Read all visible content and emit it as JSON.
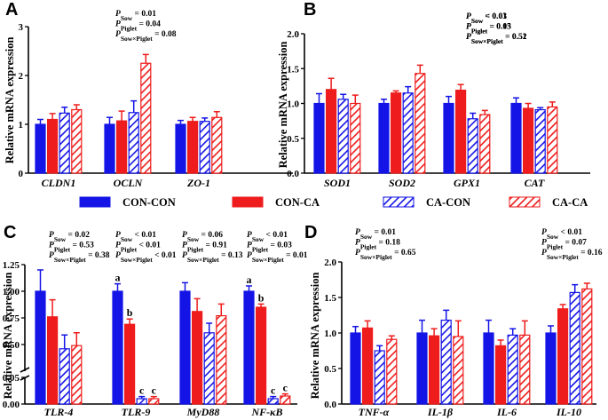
{
  "colors": {
    "con_con": "#1414e6",
    "con_ca": "#ee1c1c",
    "ca_con": "#1414e6",
    "ca_ca": "#ee1c1c"
  },
  "legend": {
    "items": [
      {
        "label": "CON-CON",
        "style": "solid",
        "color": "#1414e6"
      },
      {
        "label": "CON-CA",
        "style": "solid",
        "color": "#ee1c1c"
      },
      {
        "label": "CA-CON",
        "style": "hatch",
        "color": "#1414e6"
      },
      {
        "label": "CA-CA",
        "style": "hatch",
        "color": "#ee1c1c"
      }
    ]
  },
  "chart_data": [
    {
      "panel": "A",
      "type": "bar",
      "ylabel": "Relative mRNA expression",
      "ylim": [
        0,
        3
      ],
      "yticks": [
        "0",
        "1",
        "2",
        "3"
      ],
      "ytick_values": [
        0,
        1,
        2,
        3
      ],
      "categories": [
        "CLDN1",
        "OCLN",
        "ZO-1"
      ],
      "series": [
        {
          "name": "CON-CON",
          "values": [
            1.0,
            1.0,
            1.0
          ],
          "errors": [
            0.1,
            0.14,
            0.08
          ]
        },
        {
          "name": "CON-CA",
          "values": [
            1.1,
            1.07,
            1.06
          ],
          "errors": [
            0.12,
            0.2,
            0.08
          ]
        },
        {
          "name": "CA-CON",
          "values": [
            1.23,
            1.24,
            1.06
          ],
          "errors": [
            0.12,
            0.24,
            0.07
          ]
        },
        {
          "name": "CA-CA",
          "values": [
            1.3,
            2.25,
            1.14
          ],
          "errors": [
            0.1,
            0.18,
            0.12
          ]
        }
      ],
      "stats": [
        {
          "prefix": "P",
          "sub": "Sow",
          "text": " = 0.01",
          "cat": 1
        },
        {
          "prefix": "P",
          "sub": "Piglet",
          "text": " = 0.04",
          "cat": 1
        },
        {
          "prefix": "P",
          "sub": "Sow×Piglet",
          "text": " = 0.08",
          "cat": 1
        }
      ]
    },
    {
      "panel": "B",
      "type": "bar",
      "ylabel": "Relative mRNA expression",
      "ylim": [
        0,
        2
      ],
      "yticks": [
        "0.0",
        "0.5",
        "1.0",
        "1.5",
        "2.0"
      ],
      "ytick_values": [
        0,
        0.5,
        1,
        1.5,
        2
      ],
      "categories": [
        "SOD1",
        "SOD2",
        "GPX1",
        "CAT"
      ],
      "series": [
        {
          "name": "CON-CON",
          "values": [
            1.0,
            1.0,
            1.0,
            1.0
          ],
          "errors": [
            0.14,
            0.06,
            0.1,
            0.08
          ]
        },
        {
          "name": "CON-CA",
          "values": [
            1.2,
            1.15,
            1.19,
            0.93
          ],
          "errors": [
            0.16,
            0.03,
            0.08,
            0.07
          ]
        },
        {
          "name": "CA-CON",
          "values": [
            1.06,
            1.15,
            0.78,
            0.91
          ],
          "errors": [
            0.07,
            0.09,
            0.08,
            0.03
          ]
        },
        {
          "name": "CA-CA",
          "values": [
            1.0,
            1.43,
            0.84,
            0.95
          ],
          "errors": [
            0.12,
            0.12,
            0.06,
            0.07
          ]
        }
      ],
      "stats": [
        {
          "prefix": "P",
          "sub": "Sow",
          "text": " = 0.03",
          "cat": 1
        },
        {
          "prefix": "P",
          "sub": "Piglet",
          "text": " = 0.03",
          "cat": 1
        },
        {
          "prefix": "P",
          "sub": "Sow×Piglet",
          "text": " = 0.51",
          "cat": 1
        },
        {
          "prefix": "P",
          "sub": "Sow",
          "text": " < 0.01",
          "cat": 2
        },
        {
          "prefix": "P",
          "sub": "Piglet",
          "text": " = 0.15",
          "cat": 2
        },
        {
          "prefix": "P",
          "sub": "Sow×Piglet",
          "text": " = 0.52",
          "cat": 2
        }
      ]
    },
    {
      "panel": "C",
      "type": "bar",
      "ylabel": "Relative mRNA expression",
      "broken_axis": true,
      "ylim": [
        0,
        1.25
      ],
      "yticks": [
        "1.25",
        "1.00",
        "0.75",
        "0.50",
        "0.05",
        "0.00"
      ],
      "ytick_values": [
        1.25,
        1.0,
        0.75,
        0.5,
        0.05,
        0
      ],
      "categories": [
        "TLR-4",
        "TLR-9",
        "MyD88",
        "NF-κB"
      ],
      "series": [
        {
          "name": "CON-CON",
          "values": [
            1.0,
            1.0,
            1.0,
            1.0
          ],
          "errors": [
            0.2,
            0.07,
            0.08,
            0.05
          ]
        },
        {
          "name": "CON-CA",
          "values": [
            0.76,
            0.69,
            0.81,
            0.85
          ],
          "errors": [
            0.16,
            0.05,
            0.12,
            0.03
          ]
        },
        {
          "name": "CA-CON",
          "values": [
            0.46,
            0.01,
            0.61,
            0.01
          ],
          "errors": [
            0.13,
            0.004,
            0.09,
            0.004
          ]
        },
        {
          "name": "CA-CA",
          "values": [
            0.49,
            0.01,
            0.77,
            0.015
          ],
          "errors": [
            0.12,
            0.004,
            0.11,
            0.004
          ]
        }
      ],
      "letters": [
        {
          "cat": 1,
          "series": 0,
          "text": "a"
        },
        {
          "cat": 1,
          "series": 1,
          "text": "b"
        },
        {
          "cat": 1,
          "series": 2,
          "text": "c"
        },
        {
          "cat": 1,
          "series": 3,
          "text": "c"
        },
        {
          "cat": 3,
          "series": 0,
          "text": "a"
        },
        {
          "cat": 3,
          "series": 1,
          "text": "b"
        },
        {
          "cat": 3,
          "series": 2,
          "text": "c"
        },
        {
          "cat": 3,
          "series": 3,
          "text": "c"
        }
      ],
      "stats": [
        {
          "prefix": "P",
          "sub": "Sow",
          "text": " = 0.02",
          "cat": 0
        },
        {
          "prefix": "P",
          "sub": "Piglet",
          "text": " = 0.53",
          "cat": 0
        },
        {
          "prefix": "P",
          "sub": "Sow×Piglet",
          "text": " = 0.38",
          "cat": 0
        },
        {
          "prefix": "P",
          "sub": "Sow",
          "text": " < 0.01",
          "cat": 1
        },
        {
          "prefix": "P",
          "sub": "Piglet",
          "text": " < 0.01",
          "cat": 1
        },
        {
          "prefix": "P",
          "sub": "Sow×Piglet",
          "text": " < 0.01",
          "cat": 1
        },
        {
          "prefix": "P",
          "sub": "Sow",
          "text": " = 0.06",
          "cat": 2
        },
        {
          "prefix": "P",
          "sub": "Piglet",
          "text": " = 0.91",
          "cat": 2
        },
        {
          "prefix": "P",
          "sub": "Sow×Piglet",
          "text": " = 0.13",
          "cat": 2
        },
        {
          "prefix": "P",
          "sub": "Sow",
          "text": " < 0.01",
          "cat": 3
        },
        {
          "prefix": "P",
          "sub": "Piglet",
          "text": " = 0.03",
          "cat": 3
        },
        {
          "prefix": "P",
          "sub": "Sow×Piglet",
          "text": " = 0.01",
          "cat": 3
        }
      ]
    },
    {
      "panel": "D",
      "type": "bar",
      "ylabel": "Relative mRNA expression",
      "ylim": [
        0,
        2
      ],
      "yticks": [
        "0.0",
        "0.5",
        "1.0",
        "1.5",
        "2.0"
      ],
      "ytick_values": [
        0,
        0.5,
        1,
        1.5,
        2
      ],
      "categories": [
        "TNF-α",
        "IL-1β",
        "IL-6",
        "IL-10"
      ],
      "series": [
        {
          "name": "CON-CON",
          "values": [
            1.0,
            1.0,
            1.0,
            1.0
          ],
          "errors": [
            0.09,
            0.18,
            0.18,
            0.1
          ]
        },
        {
          "name": "CON-CA",
          "values": [
            1.07,
            0.96,
            0.82,
            1.34
          ],
          "errors": [
            0.1,
            0.1,
            0.08,
            0.06
          ]
        },
        {
          "name": "CA-CON",
          "values": [
            0.75,
            1.18,
            0.97,
            1.57
          ],
          "errors": [
            0.07,
            0.14,
            0.09,
            0.11
          ]
        },
        {
          "name": "CA-CA",
          "values": [
            0.91,
            0.95,
            0.97,
            1.62
          ],
          "errors": [
            0.05,
            0.22,
            0.2,
            0.08
          ]
        }
      ],
      "stats": [
        {
          "prefix": "P",
          "sub": "Sow",
          "text": " = 0.01",
          "cat": 0
        },
        {
          "prefix": "P",
          "sub": "Piglet",
          "text": " = 0.18",
          "cat": 0
        },
        {
          "prefix": "P",
          "sub": "Sow×Piglet",
          "text": " = 0.65",
          "cat": 0
        },
        {
          "prefix": "P",
          "sub": "Sow",
          "text": " < 0.01",
          "cat": 3
        },
        {
          "prefix": "P",
          "sub": "Piglet",
          "text": " = 0.07",
          "cat": 3
        },
        {
          "prefix": "P",
          "sub": "Sow×Piglet",
          "text": " = 0.16",
          "cat": 3
        }
      ]
    }
  ]
}
